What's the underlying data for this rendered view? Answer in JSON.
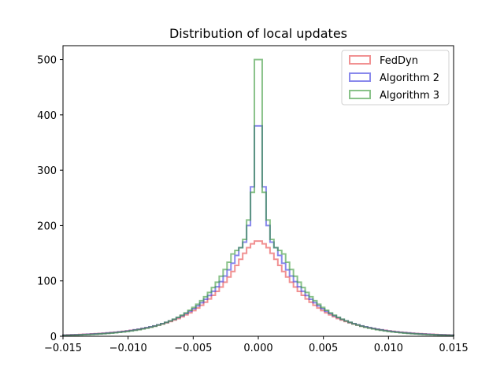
{
  "chart_data": {
    "type": "histogram",
    "title": "Distribution of local updates",
    "xlabel": "",
    "ylabel": "",
    "xlim": [
      -0.015,
      0.015
    ],
    "ylim": [
      0,
      525
    ],
    "x_ticks": [
      -0.015,
      -0.01,
      -0.005,
      0.0,
      0.005,
      0.01,
      0.015
    ],
    "x_tick_labels": [
      "−0.015",
      "−0.010",
      "−0.005",
      "0.000",
      "0.005",
      "0.010",
      "0.015"
    ],
    "y_ticks": [
      0,
      100,
      200,
      300,
      400,
      500
    ],
    "y_tick_labels": [
      "0",
      "100",
      "200",
      "300",
      "400",
      "500"
    ],
    "grid": false,
    "legend_position": "top-right",
    "bin_width": 0.0003,
    "series": [
      {
        "name": "FedDyn",
        "color": "#e8474a",
        "x": [
          -0.015,
          -0.0147,
          -0.0144,
          -0.0141,
          -0.0138,
          -0.0135,
          -0.0132,
          -0.0129,
          -0.0126,
          -0.0123,
          -0.012,
          -0.0117,
          -0.0114,
          -0.0111,
          -0.0108,
          -0.0105,
          -0.0102,
          -0.0099,
          -0.0096,
          -0.0093,
          -0.009,
          -0.0087,
          -0.0084,
          -0.0081,
          -0.0078,
          -0.0075,
          -0.0072,
          -0.0069,
          -0.0066,
          -0.0063,
          -0.006,
          -0.0057,
          -0.0054,
          -0.0051,
          -0.0048,
          -0.0045,
          -0.0042,
          -0.0039,
          -0.0036,
          -0.0033,
          -0.003,
          -0.0027,
          -0.0024,
          -0.0021,
          -0.0018,
          -0.0015,
          -0.0012,
          -0.0009,
          -0.0006,
          -0.0003,
          0.0,
          0.0003,
          0.0006,
          0.0009,
          0.0012,
          0.0015,
          0.0018,
          0.0021,
          0.0024,
          0.0027,
          0.003,
          0.0033,
          0.0036,
          0.0039,
          0.0042,
          0.0045,
          0.0048,
          0.0051,
          0.0054,
          0.0057,
          0.006,
          0.0063,
          0.0066,
          0.0069,
          0.0072,
          0.0075,
          0.0078,
          0.0081,
          0.0084,
          0.0087,
          0.009,
          0.0093,
          0.0096,
          0.0099,
          0.0102,
          0.0105,
          0.0108,
          0.0111,
          0.0114,
          0.0117,
          0.012,
          0.0123,
          0.0126,
          0.0129,
          0.0132,
          0.0135,
          0.0138,
          0.0141,
          0.0144,
          0.0147
        ],
        "values": [
          2.2,
          2.4,
          2.7,
          2.9,
          3.2,
          3.5,
          3.8,
          4.2,
          4.6,
          5.0,
          5.5,
          6.1,
          6.7,
          7.3,
          8.0,
          8.8,
          9.6,
          10.6,
          11.6,
          12.7,
          14.0,
          15.3,
          16.8,
          18.4,
          20.2,
          22.2,
          24.3,
          26.7,
          29.3,
          32.1,
          35.2,
          38.7,
          42.4,
          46.5,
          51.1,
          56.0,
          61.5,
          67.4,
          73.9,
          81.1,
          88.9,
          97.6,
          107.0,
          117.0,
          128.0,
          139.0,
          150.0,
          160.0,
          167.0,
          172.0,
          172.0,
          167.0,
          160.0,
          150.0,
          139.0,
          128.0,
          117.0,
          107.0,
          97.6,
          88.9,
          81.1,
          73.9,
          67.4,
          61.5,
          56.0,
          51.1,
          46.5,
          42.4,
          38.7,
          35.2,
          32.1,
          29.3,
          26.7,
          24.3,
          22.2,
          20.2,
          18.4,
          16.8,
          15.3,
          14.0,
          12.7,
          11.6,
          10.6,
          9.6,
          8.8,
          8.0,
          7.3,
          6.7,
          6.1,
          5.5,
          5.0,
          4.6,
          4.2,
          3.8,
          3.5,
          3.2,
          2.9,
          2.7,
          2.4,
          2.2
        ]
      },
      {
        "name": "Algorithm 2",
        "color": "#3a3ae0",
        "x": [
          -0.015,
          -0.0147,
          -0.0144,
          -0.0141,
          -0.0138,
          -0.0135,
          -0.0132,
          -0.0129,
          -0.0126,
          -0.0123,
          -0.012,
          -0.0117,
          -0.0114,
          -0.0111,
          -0.0108,
          -0.0105,
          -0.0102,
          -0.0099,
          -0.0096,
          -0.0093,
          -0.009,
          -0.0087,
          -0.0084,
          -0.0081,
          -0.0078,
          -0.0075,
          -0.0072,
          -0.0069,
          -0.0066,
          -0.0063,
          -0.006,
          -0.0057,
          -0.0054,
          -0.0051,
          -0.0048,
          -0.0045,
          -0.0042,
          -0.0039,
          -0.0036,
          -0.0033,
          -0.003,
          -0.0027,
          -0.0024,
          -0.0021,
          -0.0018,
          -0.0015,
          -0.0012,
          -0.0009,
          -0.0006,
          -0.0003,
          0.0,
          0.0003,
          0.0006,
          0.0009,
          0.0012,
          0.0015,
          0.0018,
          0.0021,
          0.0024,
          0.0027,
          0.003,
          0.0033,
          0.0036,
          0.0039,
          0.0042,
          0.0045,
          0.0048,
          0.0051,
          0.0054,
          0.0057,
          0.006,
          0.0063,
          0.0066,
          0.0069,
          0.0072,
          0.0075,
          0.0078,
          0.0081,
          0.0084,
          0.0087,
          0.009,
          0.0093,
          0.0096,
          0.0099,
          0.0102,
          0.0105,
          0.0108,
          0.0111,
          0.0114,
          0.0117,
          0.012,
          0.0123,
          0.0126,
          0.0129,
          0.0132,
          0.0135,
          0.0138,
          0.0141,
          0.0144,
          0.0147
        ],
        "values": [
          1.9,
          2.1,
          2.4,
          2.6,
          2.9,
          3.2,
          3.5,
          3.9,
          4.3,
          4.7,
          5.2,
          5.8,
          6.4,
          7.0,
          7.8,
          8.6,
          9.4,
          10.4,
          11.5,
          12.7,
          14.0,
          15.4,
          17.0,
          18.7,
          20.7,
          22.8,
          25.1,
          27.7,
          30.6,
          33.7,
          37.2,
          41.0,
          45.2,
          49.8,
          54.9,
          60.6,
          66.8,
          73.6,
          81.2,
          89.5,
          98.7,
          108.8,
          120.0,
          132.0,
          146.0,
          160.0,
          170.0,
          200.0,
          270.0,
          380.0,
          380.0,
          270.0,
          200.0,
          170.0,
          160.0,
          146.0,
          132.0,
          120.0,
          108.8,
          98.7,
          89.5,
          81.2,
          73.6,
          66.8,
          60.6,
          54.9,
          49.8,
          45.2,
          41.0,
          37.2,
          33.7,
          30.6,
          27.7,
          25.1,
          22.8,
          20.7,
          18.7,
          17.0,
          15.4,
          14.0,
          12.7,
          11.5,
          10.4,
          9.4,
          8.6,
          7.8,
          7.0,
          6.4,
          5.8,
          5.2,
          4.7,
          4.3,
          3.9,
          3.5,
          3.2,
          2.9,
          2.6,
          2.4,
          2.1,
          1.9
        ]
      },
      {
        "name": "Algorithm 3",
        "color": "#3a9a3a",
        "x": [
          -0.015,
          -0.0147,
          -0.0144,
          -0.0141,
          -0.0138,
          -0.0135,
          -0.0132,
          -0.0129,
          -0.0126,
          -0.0123,
          -0.012,
          -0.0117,
          -0.0114,
          -0.0111,
          -0.0108,
          -0.0105,
          -0.0102,
          -0.0099,
          -0.0096,
          -0.0093,
          -0.009,
          -0.0087,
          -0.0084,
          -0.0081,
          -0.0078,
          -0.0075,
          -0.0072,
          -0.0069,
          -0.0066,
          -0.0063,
          -0.006,
          -0.0057,
          -0.0054,
          -0.0051,
          -0.0048,
          -0.0045,
          -0.0042,
          -0.0039,
          -0.0036,
          -0.0033,
          -0.003,
          -0.0027,
          -0.0024,
          -0.0021,
          -0.0018,
          -0.0015,
          -0.0012,
          -0.0009,
          -0.0006,
          -0.0003,
          0.0,
          0.0003,
          0.0006,
          0.0009,
          0.0012,
          0.0015,
          0.0018,
          0.0021,
          0.0024,
          0.0027,
          0.003,
          0.0033,
          0.0036,
          0.0039,
          0.0042,
          0.0045,
          0.0048,
          0.0051,
          0.0054,
          0.0057,
          0.006,
          0.0063,
          0.0066,
          0.0069,
          0.0072,
          0.0075,
          0.0078,
          0.0081,
          0.0084,
          0.0087,
          0.009,
          0.0093,
          0.0096,
          0.0099,
          0.0102,
          0.0105,
          0.0108,
          0.0111,
          0.0114,
          0.0117,
          0.012,
          0.0123,
          0.0126,
          0.0129,
          0.0132,
          0.0135,
          0.0138,
          0.0141,
          0.0144,
          0.0147
        ],
        "values": [
          1.6,
          1.8,
          2.0,
          2.2,
          2.5,
          2.8,
          3.1,
          3.4,
          3.8,
          4.2,
          4.7,
          5.2,
          5.7,
          6.4,
          7.1,
          7.9,
          8.7,
          9.7,
          10.8,
          12.0,
          13.3,
          14.8,
          16.4,
          18.2,
          20.2,
          22.5,
          25.0,
          27.7,
          30.8,
          34.2,
          38.0,
          42.2,
          46.9,
          52.1,
          57.8,
          64.2,
          71.3,
          79.2,
          88.0,
          97.7,
          108.5,
          120.5,
          133.8,
          148.6,
          155.0,
          160.0,
          175.0,
          210.0,
          260.0,
          500.0,
          500.0,
          260.0,
          210.0,
          175.0,
          160.0,
          155.0,
          148.6,
          133.8,
          120.5,
          108.5,
          97.7,
          88.0,
          79.2,
          71.3,
          64.2,
          57.8,
          52.1,
          46.9,
          42.2,
          38.0,
          34.2,
          30.8,
          27.7,
          25.0,
          22.5,
          20.2,
          18.2,
          16.4,
          14.8,
          13.3,
          12.0,
          10.8,
          9.7,
          8.7,
          7.9,
          7.1,
          6.4,
          5.7,
          5.2,
          4.7,
          4.2,
          3.8,
          3.4,
          3.1,
          2.8,
          2.5,
          2.2,
          2.0,
          1.8,
          1.6
        ]
      }
    ]
  }
}
